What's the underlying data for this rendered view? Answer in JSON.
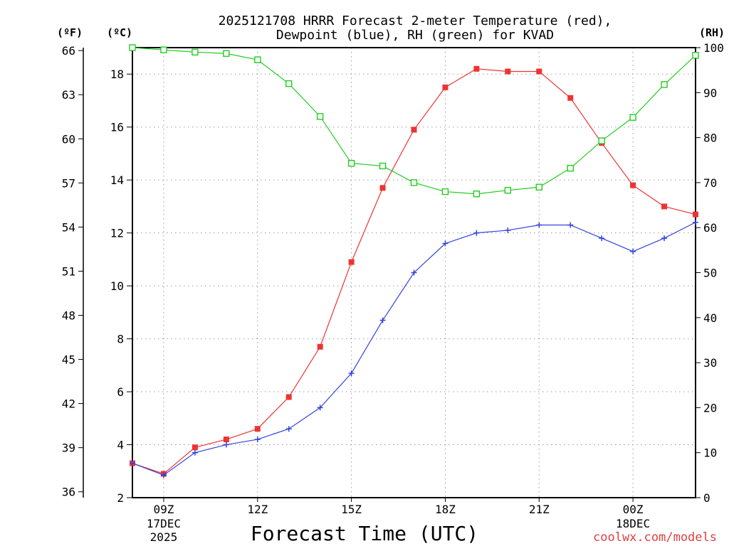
{
  "chart_data": {
    "type": "line",
    "title_lines": [
      "2025121708 HRRR Forecast 2-meter Temperature (red),",
      "Dewpoint (blue), RH (green) for KVAD"
    ],
    "xlabel": "Forecast Time (UTC)",
    "x_hours": [
      8,
      9,
      10,
      11,
      12,
      13,
      14,
      15,
      16,
      17,
      18,
      19,
      20,
      21,
      22,
      23,
      24,
      25,
      26
    ],
    "xlim": [
      8,
      26
    ],
    "x_ticks": [
      {
        "hour": 9,
        "label": "09Z",
        "sub1": "17DEC",
        "sub2": "2025"
      },
      {
        "hour": 12,
        "label": "12Z",
        "sub1": "",
        "sub2": ""
      },
      {
        "hour": 15,
        "label": "15Z",
        "sub1": "",
        "sub2": ""
      },
      {
        "hour": 18,
        "label": "18Z",
        "sub1": "",
        "sub2": ""
      },
      {
        "hour": 21,
        "label": "21Z",
        "sub1": "",
        "sub2": ""
      },
      {
        "hour": 24,
        "label": "00Z",
        "sub1": "18DEC",
        "sub2": ""
      }
    ],
    "left_outer_axis": {
      "unit_label": "(ºF)",
      "range": [
        35.6,
        66.2
      ],
      "ticks": [
        "36",
        "39",
        "42",
        "45",
        "48",
        "51",
        "54",
        "57",
        "60",
        "63",
        "66"
      ]
    },
    "left_inner_axis": {
      "unit_label": "(ºC)",
      "range": [
        2,
        19
      ],
      "ticks": [
        "2",
        "4",
        "6",
        "8",
        "10",
        "12",
        "14",
        "16",
        "18"
      ]
    },
    "right_axis": {
      "unit_label": "(RH)",
      "range": [
        0,
        100
      ],
      "ticks": [
        "0",
        "10",
        "20",
        "30",
        "40",
        "50",
        "60",
        "70",
        "80",
        "90",
        "100"
      ]
    },
    "series": [
      {
        "name": "Temperature",
        "units": "degC",
        "axis": "celsius",
        "color": "#ee3333",
        "marker": "filled-square",
        "values": [
          3.3,
          2.9,
          3.9,
          4.2,
          4.6,
          5.8,
          7.7,
          10.9,
          13.7,
          15.9,
          17.5,
          18.2,
          18.1,
          18.1,
          17.1,
          15.4,
          13.8,
          13.0,
          12.7
        ]
      },
      {
        "name": "Dewpoint",
        "units": "degC",
        "axis": "celsius",
        "color": "#3344dd",
        "marker": "plus",
        "values": [
          3.3,
          2.85,
          3.7,
          4.0,
          4.2,
          4.6,
          5.4,
          6.7,
          8.7,
          10.5,
          11.6,
          12.0,
          12.1,
          12.3,
          12.3,
          11.8,
          11.3,
          11.8,
          12.4
        ]
      },
      {
        "name": "RH",
        "units": "percent",
        "axis": "rh",
        "color": "#22cc22",
        "marker": "open-square",
        "values": [
          100,
          99.5,
          99,
          98.7,
          97.3,
          92,
          84.7,
          74.3,
          73.7,
          70,
          68,
          67.5,
          68.3,
          69,
          73.2,
          79.3,
          84.5,
          91.8,
          98.3
        ]
      }
    ],
    "credit": "coolwx.com/models"
  }
}
